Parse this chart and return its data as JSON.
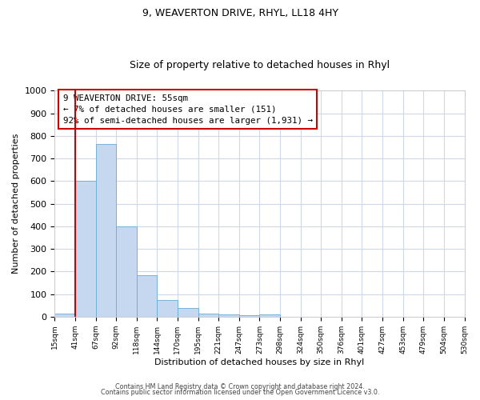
{
  "title_line1": "9, WEAVERTON DRIVE, RHYL, LL18 4HY",
  "title_line2": "Size of property relative to detached houses in Rhyl",
  "xlabel": "Distribution of detached houses by size in Rhyl",
  "ylabel": "Number of detached properties",
  "bar_heights": [
    15,
    600,
    765,
    400,
    185,
    75,
    38,
    15,
    10,
    8,
    10,
    0,
    0,
    0,
    0,
    0,
    0,
    0,
    0,
    0
  ],
  "x_labels": [
    "15sqm",
    "41sqm",
    "67sqm",
    "92sqm",
    "118sqm",
    "144sqm",
    "170sqm",
    "195sqm",
    "221sqm",
    "247sqm",
    "273sqm",
    "298sqm",
    "324sqm",
    "350sqm",
    "376sqm",
    "401sqm",
    "427sqm",
    "453sqm",
    "479sqm",
    "504sqm",
    "530sqm"
  ],
  "bar_color": "#c5d8f0",
  "bar_edge_color": "#6aaad4",
  "vline_x": 1,
  "vline_color": "#cc0000",
  "ylim": [
    0,
    1000
  ],
  "yticks": [
    0,
    100,
    200,
    300,
    400,
    500,
    600,
    700,
    800,
    900,
    1000
  ],
  "annotation_line1": "9 WEAVERTON DRIVE: 55sqm",
  "annotation_line2": "← 7% of detached houses are smaller (151)",
  "annotation_line3": "92% of semi-detached houses are larger (1,931) →",
  "footer_line1": "Contains HM Land Registry data © Crown copyright and database right 2024.",
  "footer_line2": "Contains public sector information licensed under the Open Government Licence v3.0.",
  "grid_color": "#d0d8e8",
  "background_color": "#ffffff"
}
